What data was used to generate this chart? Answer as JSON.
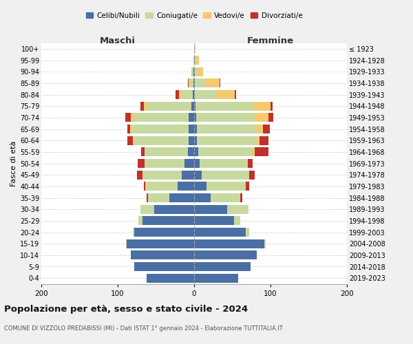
{
  "age_groups": [
    "0-4",
    "5-9",
    "10-14",
    "15-19",
    "20-24",
    "25-29",
    "30-34",
    "35-39",
    "40-44",
    "45-49",
    "50-54",
    "55-59",
    "60-64",
    "65-69",
    "70-74",
    "75-79",
    "80-84",
    "85-89",
    "90-94",
    "95-99",
    "100+"
  ],
  "birth_years": [
    "2019-2023",
    "2014-2018",
    "2009-2013",
    "2004-2008",
    "1999-2003",
    "1994-1998",
    "1989-1993",
    "1984-1988",
    "1979-1983",
    "1974-1978",
    "1969-1973",
    "1964-1968",
    "1959-1963",
    "1954-1958",
    "1949-1953",
    "1944-1948",
    "1939-1943",
    "1934-1938",
    "1929-1933",
    "1924-1928",
    "≤ 1923"
  ],
  "colors": {
    "celibi": "#4a6fa5",
    "coniugati": "#c8d9a0",
    "vedovi": "#f5c96e",
    "divorziati": "#c0312b"
  },
  "maschi": {
    "celibi": [
      62,
      78,
      83,
      88,
      78,
      68,
      52,
      32,
      22,
      16,
      13,
      8,
      7,
      7,
      7,
      4,
      2,
      1,
      1,
      0,
      0
    ],
    "coniugati": [
      0,
      0,
      0,
      1,
      2,
      5,
      18,
      28,
      42,
      52,
      52,
      57,
      72,
      75,
      72,
      58,
      14,
      4,
      2,
      1,
      0
    ],
    "vedovi": [
      0,
      0,
      0,
      0,
      0,
      0,
      0,
      0,
      0,
      0,
      0,
      0,
      1,
      2,
      4,
      4,
      4,
      2,
      1,
      0,
      0
    ],
    "divorziati": [
      0,
      0,
      0,
      0,
      0,
      0,
      0,
      2,
      2,
      7,
      9,
      4,
      7,
      3,
      7,
      4,
      4,
      1,
      0,
      0,
      0
    ]
  },
  "femmine": {
    "celibi": [
      58,
      74,
      82,
      92,
      68,
      52,
      43,
      22,
      16,
      10,
      7,
      5,
      4,
      4,
      3,
      2,
      1,
      1,
      1,
      1,
      0
    ],
    "coniugati": [
      0,
      0,
      0,
      2,
      4,
      8,
      28,
      38,
      52,
      62,
      62,
      72,
      78,
      78,
      76,
      76,
      28,
      14,
      4,
      2,
      1
    ],
    "vedovi": [
      0,
      0,
      0,
      0,
      0,
      0,
      0,
      0,
      0,
      0,
      1,
      2,
      4,
      8,
      18,
      22,
      24,
      18,
      7,
      3,
      1
    ],
    "divorziati": [
      0,
      0,
      0,
      0,
      0,
      0,
      0,
      3,
      4,
      7,
      7,
      18,
      11,
      9,
      7,
      3,
      2,
      1,
      0,
      0,
      0
    ]
  },
  "xlim": 200,
  "title": "Popolazione per età, sesso e stato civile - 2024",
  "subtitle": "COMUNE DI VIZZOLO PREDABISSI (MI) - Dati ISTAT 1° gennaio 2024 - Elaborazione TUTTITALIA.IT",
  "ylabel_left": "Fasce di età",
  "xlabel_left": "Maschi",
  "xlabel_right": "Femmine",
  "bg_color": "#f0f0f0",
  "plot_bg": "#ffffff"
}
